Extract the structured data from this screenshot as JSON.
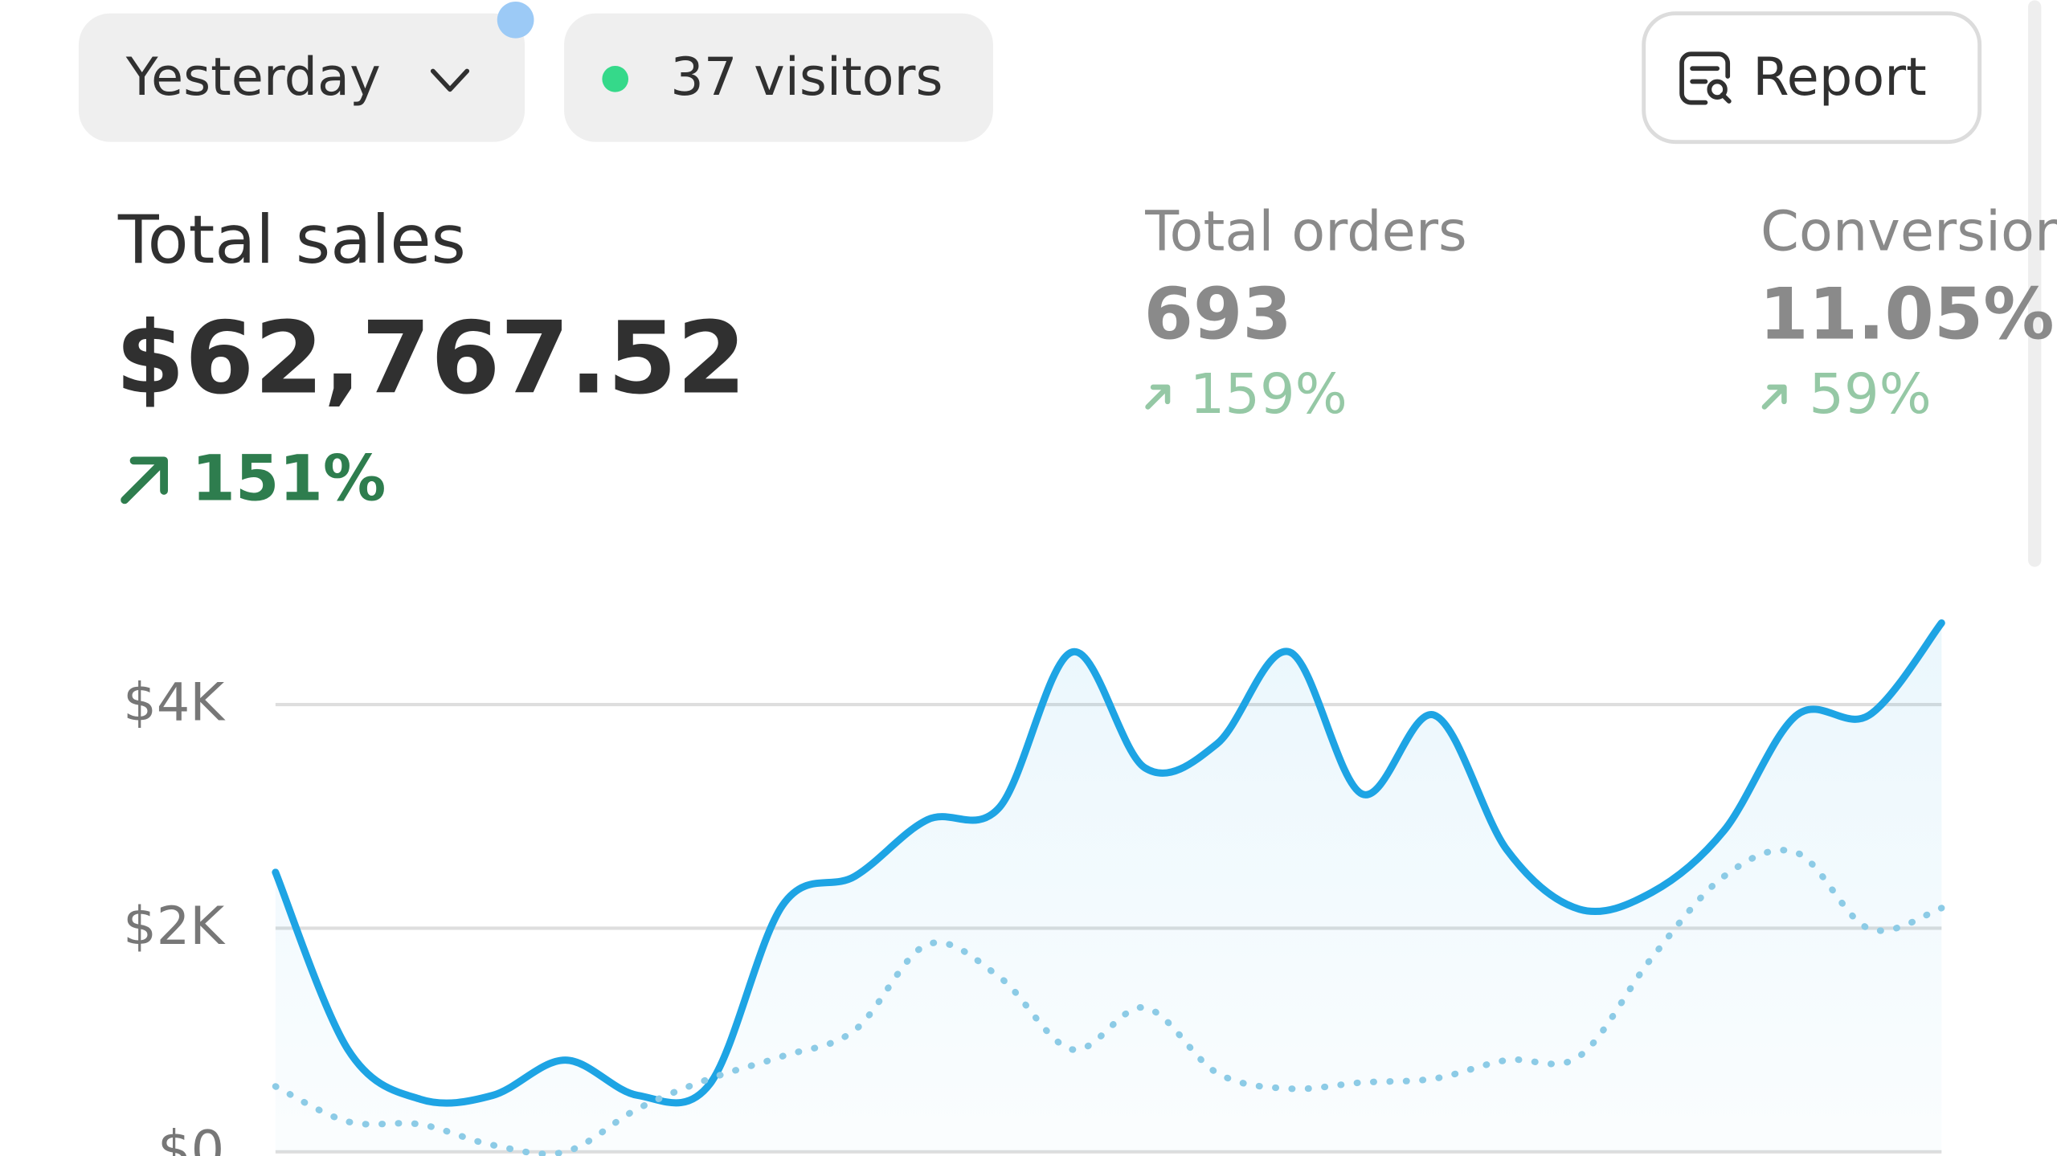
{
  "toolbar": {
    "date_filter": "Yesterday",
    "visitors": "37 visitors",
    "report": "Report"
  },
  "metrics": [
    {
      "label": "Total sales",
      "value": "$62,767.52",
      "change": "151%"
    },
    {
      "label": "Total orders",
      "value": "693",
      "change": "159%"
    },
    {
      "label": "Conversion",
      "value": "11.05%",
      "change": "59%"
    }
  ],
  "chart_data": {
    "type": "line",
    "ylim": [
      0,
      4800
    ],
    "yticks": [
      {
        "value": 0,
        "label": "$0"
      },
      {
        "value": 2000,
        "label": "$2K"
      },
      {
        "value": 4000,
        "label": "$4K"
      }
    ],
    "grid": true,
    "series": [
      {
        "color": "#1ea4e4",
        "style": "solid",
        "area": true,
        "values": [
          2500,
          915,
          470,
          505,
          820,
          505,
          610,
          2205,
          2465,
          2970,
          3085,
          4470,
          3435,
          3650,
          4470,
          3200,
          3905,
          2700,
          2170,
          2320,
          2875,
          3905,
          3905,
          4730
        ]
      },
      {
        "color": "#8ccbe6",
        "style": "dotted",
        "area": false,
        "values": [
          585,
          270,
          245,
          60,
          0,
          385,
          655,
          855,
          1090,
          1855,
          1560,
          915,
          1290,
          705,
          565,
          620,
          655,
          820,
          855,
          1735,
          2465,
          2675,
          1995,
          2180
        ]
      }
    ]
  }
}
